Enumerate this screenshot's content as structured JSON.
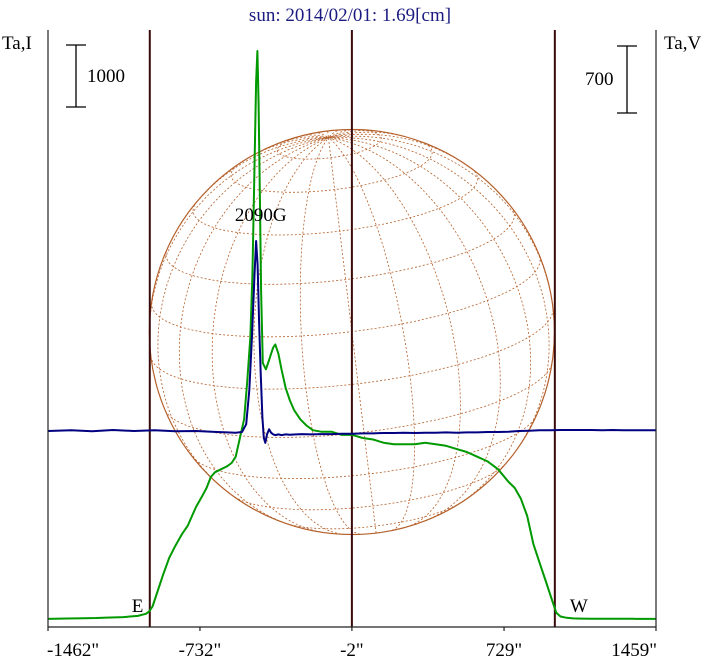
{
  "chart_data": {
    "type": "line",
    "title": "sun: 2014/02/01: 1.69[cm]",
    "ylabel_left": "Ta,I",
    "ylabel_right": "Ta,V",
    "scalebar_left": "1000",
    "scalebar_right": "700",
    "xlim": [
      -1462,
      1459
    ],
    "x_ticks": [
      "-1462\"",
      "-732\"",
      "-2\"",
      "729\"",
      "1459\""
    ],
    "x_tick_values": [
      -1462,
      -732,
      -2,
      729,
      1459
    ],
    "limb_markers": [
      {
        "label": "E",
        "x": -973
      },
      {
        "label": "W",
        "x": 973
      }
    ],
    "annotations": [
      {
        "text": "2090G",
        "x": -440
      }
    ],
    "colors": {
      "intensity": "#009900",
      "polarization": "#000080",
      "disk": "#b5602a",
      "axes_lines": "#3a0a0a",
      "title": "#1a1a80"
    },
    "series": [
      {
        "name": "Ta,I",
        "color": "#009900",
        "x": [
          -1462,
          -1370,
          -1290,
          -1230,
          -1180,
          -1100,
          -1030,
          -990,
          -975,
          -960,
          -940,
          -910,
          -880,
          -850,
          -820,
          -790,
          -770,
          -750,
          -720,
          -700,
          -680,
          -660,
          -630,
          -600,
          -580,
          -560,
          -540,
          -520,
          -505,
          -490,
          -480,
          -470,
          -462,
          -456,
          -450,
          -444,
          -438,
          -430,
          -415,
          -400,
          -390,
          -380,
          -370,
          -355,
          -340,
          -320,
          -300,
          -280,
          -250,
          -220,
          -190,
          -150,
          -100,
          -50,
          0,
          50,
          100,
          150,
          200,
          250,
          300,
          350,
          400,
          450,
          500,
          550,
          600,
          650,
          700,
          750,
          780,
          810,
          840,
          870,
          900,
          930,
          960,
          980,
          1000,
          1030,
          1060,
          1100,
          1150,
          1200,
          1250,
          1300,
          1350,
          1400,
          1459
        ],
        "values": [
          0.3,
          1.5,
          2.5,
          3.3,
          4.5,
          6,
          10,
          17,
          25,
          40,
          80,
          140,
          195,
          235,
          270,
          300,
          330,
          360,
          395,
          420,
          455,
          470,
          480,
          490,
          500,
          520,
          580,
          640,
          760,
          900,
          1100,
          1450,
          1720,
          1820,
          1650,
          1350,
          1050,
          820,
          800,
          830,
          850,
          870,
          880,
          850,
          800,
          740,
          700,
          670,
          640,
          620,
          605,
          600,
          600,
          590,
          590,
          580,
          575,
          565,
          560,
          560,
          560,
          565,
          560,
          555,
          545,
          535,
          520,
          505,
          480,
          440,
          420,
          385,
          330,
          240,
          180,
          120,
          60,
          20,
          8,
          4,
          2,
          1.2,
          0.9,
          0.7,
          0.6,
          0.5,
          0.5,
          0.4,
          0.4
        ]
      },
      {
        "name": "Ta,V",
        "color": "#000080",
        "x": [
          -1462,
          -1350,
          -1250,
          -1150,
          -1050,
          -950,
          -850,
          -750,
          -650,
          -600,
          -560,
          -530,
          -510,
          -495,
          -482,
          -470,
          -462,
          -455,
          -448,
          -440,
          -432,
          -425,
          -418,
          -410,
          -400,
          -390,
          -380,
          -370,
          -355,
          -340,
          -320,
          -300,
          -270,
          -240,
          -200,
          -150,
          -100,
          -50,
          0,
          50,
          100,
          150,
          200,
          250,
          300,
          350,
          400,
          450,
          500,
          550,
          600,
          650,
          700,
          750,
          800,
          850,
          900,
          950,
          1000,
          1050,
          1100,
          1150,
          1200,
          1250,
          1300,
          1350,
          1400,
          1459
        ],
        "values": [
          0,
          2,
          -1,
          3,
          0,
          2,
          -1,
          0,
          -3,
          -4,
          -5,
          -3,
          20,
          120,
          280,
          460,
          560,
          490,
          320,
          170,
          40,
          -20,
          -35,
          -10,
          5,
          -5,
          -10,
          -12,
          -10,
          -12,
          -10,
          -11,
          -10,
          -9,
          -10,
          -9,
          -9,
          -8,
          -8,
          -7,
          -7,
          -6,
          -6,
          -5,
          -6,
          -5,
          -5,
          -4,
          -5,
          -4,
          -4,
          -3,
          -3,
          -2,
          0,
          1,
          2,
          2,
          3,
          3,
          3,
          3,
          2,
          3,
          2,
          2,
          2,
          2
        ]
      }
    ]
  }
}
